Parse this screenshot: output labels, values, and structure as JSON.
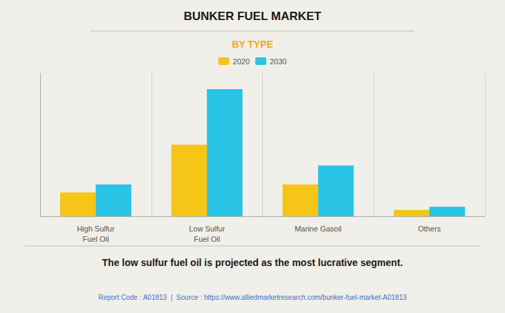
{
  "chart_data": {
    "type": "bar",
    "title": "BUNKER FUEL MARKET",
    "subtitle": "BY TYPE",
    "categories": [
      "High Sulfur\nFuel Oil",
      "Low Sulfur\nFuel Oil",
      "Marine Gasoil",
      "Others"
    ],
    "series": [
      {
        "name": "2020",
        "color": "#F5C518",
        "values": [
          15,
          45,
          20,
          4
        ]
      },
      {
        "name": "2030",
        "color": "#29C3E5",
        "values": [
          20,
          80,
          32,
          6
        ]
      }
    ],
    "ylim": [
      0,
      90
    ],
    "grid": "x",
    "legend": "top",
    "tick_labels": "x",
    "annotations": [
      "The low sulfur fuel oil is projected as the most lucrative segment.",
      "Report Code : A01813  |  Source : https://www.alliedmarketresearch.com/bunker-fuel-market-A01813"
    ]
  }
}
